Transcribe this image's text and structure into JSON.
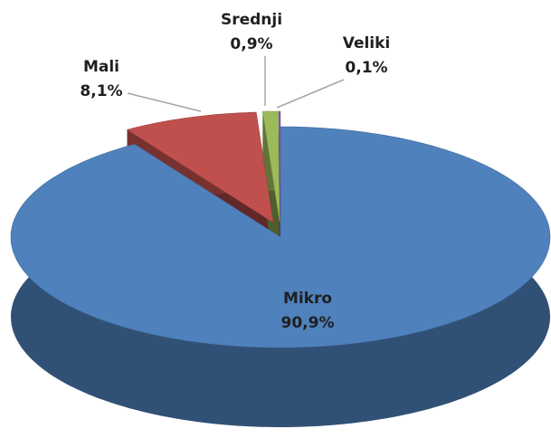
{
  "chart_data": {
    "type": "pie",
    "categories": [
      "Mikro",
      "Mali",
      "Srednji",
      "Veliki"
    ],
    "values": [
      90.9,
      8.1,
      0.9,
      0.1
    ],
    "value_labels": [
      "90,9%",
      "8,1%",
      "0,9%",
      "0,1%"
    ],
    "colors": [
      "#4f81bd",
      "#c0504d",
      "#9bbb59",
      "#8064a2"
    ]
  }
}
